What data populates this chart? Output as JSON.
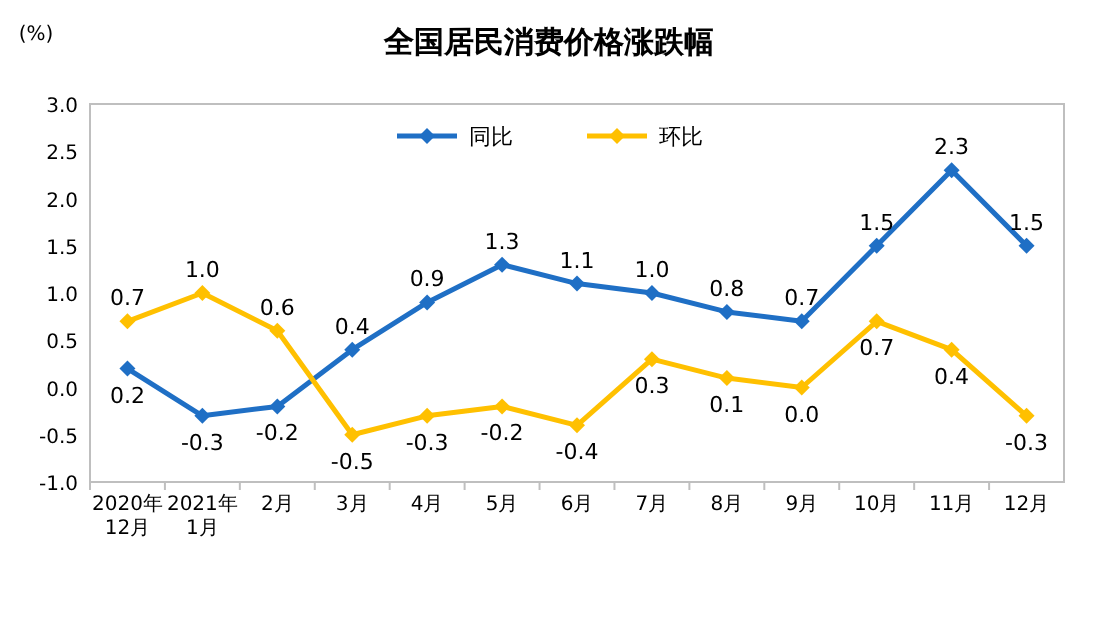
{
  "chart_data": {
    "type": "line",
    "title": "全国居民消费价格涨跌幅",
    "ylabel": "(%)",
    "categories": [
      "2020年\n12月",
      "2021年\n1月",
      "2月",
      "3月",
      "4月",
      "5月",
      "6月",
      "7月",
      "8月",
      "9月",
      "10月",
      "11月",
      "12月"
    ],
    "series": [
      {
        "name": "同比",
        "color": "#1f6fc5",
        "values": [
          0.2,
          -0.3,
          -0.2,
          0.4,
          0.9,
          1.3,
          1.1,
          1.0,
          0.8,
          0.7,
          1.5,
          2.3,
          1.5
        ],
        "value_labels": [
          "0.2",
          "-0.3",
          "-0.2",
          "0.4",
          "0.9",
          "1.3",
          "1.1",
          "1.0",
          "0.8",
          "0.7",
          "1.5",
          "2.3",
          "1.5"
        ]
      },
      {
        "name": "环比",
        "color": "#ffc000",
        "values": [
          0.7,
          1.0,
          0.6,
          -0.5,
          -0.3,
          -0.2,
          -0.4,
          0.3,
          0.1,
          0.0,
          0.7,
          0.4,
          -0.3
        ],
        "value_labels": [
          "0.7",
          "1.0",
          "0.6",
          "-0.5",
          "-0.3",
          "-0.2",
          "-0.4",
          "0.3",
          "0.1",
          "0.0",
          "0.7",
          "0.4",
          "-0.3"
        ]
      }
    ],
    "ylim": [
      -1.0,
      3.0
    ],
    "yticks": [
      {
        "value": -1.0,
        "label": "-1.0"
      },
      {
        "value": -0.5,
        "label": "-0.5"
      },
      {
        "value": 0.0,
        "label": "0.0"
      },
      {
        "value": 0.5,
        "label": "0.5"
      },
      {
        "value": 1.0,
        "label": "1.0"
      },
      {
        "value": 1.5,
        "label": "1.5"
      },
      {
        "value": 2.0,
        "label": "2.0"
      },
      {
        "value": 2.5,
        "label": "2.5"
      },
      {
        "value": 3.0,
        "label": "3.0"
      }
    ],
    "marker": "diamond",
    "line_style": "solid",
    "legend": "top",
    "grid": false
  }
}
